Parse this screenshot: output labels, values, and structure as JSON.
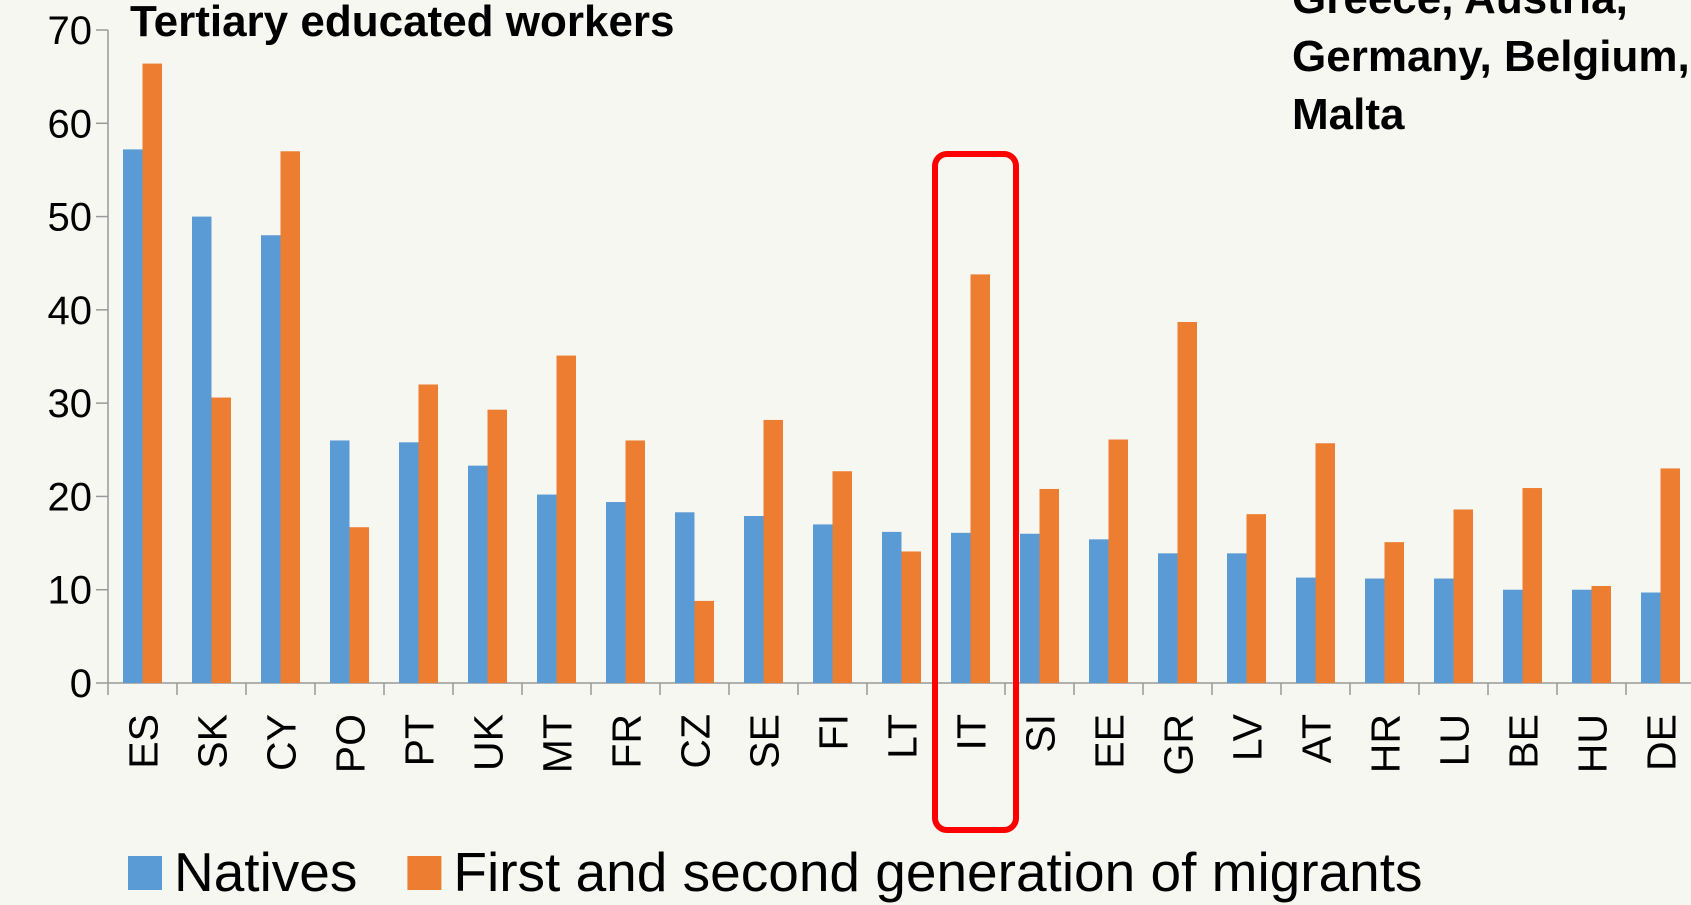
{
  "chart_data": {
    "type": "bar",
    "title": "Tertiary educated workers",
    "annotation": [
      "Greece, Austria,",
      "Germany, Belgium,",
      "Malta"
    ],
    "categories": [
      "ES",
      "SK",
      "CY",
      "PO",
      "PT",
      "UK",
      "MT",
      "FR",
      "CZ",
      "SE",
      "FI",
      "LT",
      "IT",
      "SI",
      "EE",
      "GR",
      "LV",
      "AT",
      "HR",
      "LU",
      "BE",
      "HU",
      "DE"
    ],
    "series": [
      {
        "name": "Natives",
        "color": "#5b9bd5",
        "values": [
          57.2,
          50,
          48,
          26,
          25.8,
          23.3,
          20.2,
          19.4,
          18.3,
          17.9,
          17,
          16.2,
          16.1,
          16,
          15.4,
          13.9,
          13.9,
          11.3,
          11.2,
          11.2,
          10,
          10,
          9.7
        ]
      },
      {
        "name": "First and second generation of migrants",
        "color": "#ed7d31",
        "values": [
          66.4,
          30.6,
          57,
          16.7,
          32,
          29.3,
          35.1,
          26,
          8.8,
          28.2,
          22.7,
          14.1,
          43.8,
          20.8,
          26.1,
          38.7,
          18.1,
          25.7,
          15.1,
          18.6,
          20.9,
          10.4,
          23
        ]
      }
    ],
    "highlight": "IT",
    "ylim": [
      0,
      70
    ],
    "yticks": [
      0,
      10,
      20,
      30,
      40,
      50,
      60,
      70
    ]
  }
}
